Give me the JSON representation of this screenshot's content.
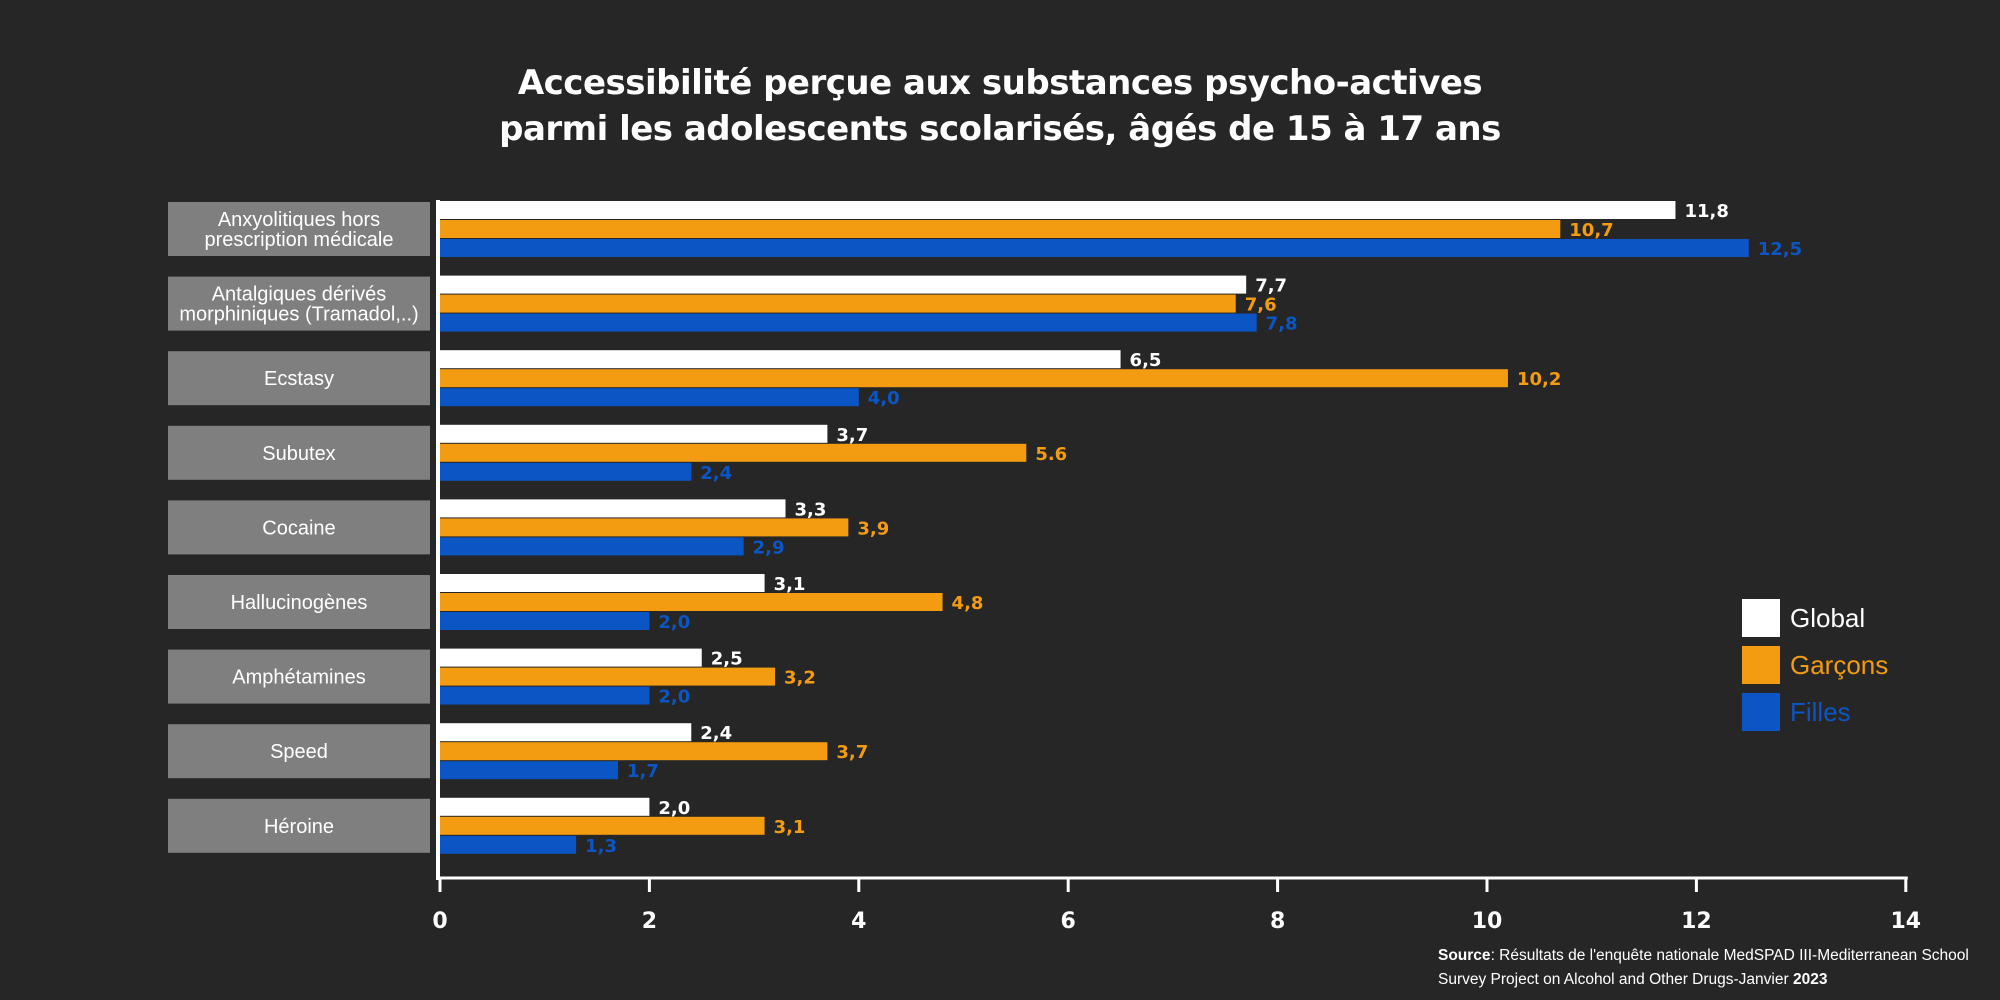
{
  "chart_data": {
    "type": "bar",
    "orientation": "horizontal",
    "title_line1": "Accessibilité perçue aux substances psycho-actives",
    "title_line2": "parmi les adolescents scolarisés, âgés de 15 à 17 ans",
    "categories": [
      "Anxyolitiques hors prescription médicale",
      "Antalgiques dérivés morphiniques (Tramadol,..)",
      "Ecstasy",
      "Subutex",
      "Cocaine",
      "Hallucinogènes",
      "Amphétamines",
      "Speed",
      "Héroine"
    ],
    "category_lines": [
      [
        "Anxyolitiques hors",
        "prescription médicale"
      ],
      [
        "Antalgiques dérivés",
        "morphiniques (Tramadol,..)"
      ],
      [
        "Ecstasy"
      ],
      [
        "Subutex"
      ],
      [
        "Cocaine"
      ],
      [
        "Hallucinogènes"
      ],
      [
        "Amphétamines"
      ],
      [
        "Speed"
      ],
      [
        "Héroine"
      ]
    ],
    "series": [
      {
        "name": "Global",
        "color": "#ffffff",
        "values": [
          11.8,
          7.7,
          6.5,
          3.7,
          3.3,
          3.1,
          2.5,
          2.4,
          2.0
        ],
        "labels": [
          "11,8",
          "7,7",
          "6,5",
          "3,7",
          "3,3",
          "3,1",
          "2,5",
          "2,4",
          "2,0"
        ]
      },
      {
        "name": "Garçons",
        "color": "#f39c12",
        "values": [
          10.7,
          7.6,
          10.2,
          5.6,
          3.9,
          4.8,
          3.2,
          3.7,
          3.1
        ],
        "labels": [
          "10,7",
          "7,6",
          "10,2",
          "5.6",
          "3,9",
          "4,8",
          "3,2",
          "3,7",
          "3,1"
        ]
      },
      {
        "name": "Filles",
        "color": "#0b56c4",
        "values": [
          12.5,
          7.8,
          4.0,
          2.4,
          2.9,
          2.0,
          2.0,
          1.7,
          1.3
        ],
        "labels": [
          "12,5",
          "7,8",
          "4,0",
          "2,4",
          "2,9",
          "2,0",
          "2,0",
          "1,7",
          "1,3"
        ]
      }
    ],
    "xlim": [
      0,
      14
    ],
    "xticks": [
      0,
      2,
      4,
      6,
      8,
      10,
      12,
      14
    ],
    "xlabel": "",
    "ylabel": "",
    "grid": false,
    "legend_position": "right"
  },
  "source": {
    "label": "Source",
    "text_line1": ": Résultats de l'enquête nationale MedSPAD III-Mediterranean School",
    "text_line2": "Survey Project on Alcohol and Other Drugs-Janvier ",
    "year": "2023"
  },
  "colors": {
    "background": "#262626",
    "category_box": "#7f7f7f"
  }
}
